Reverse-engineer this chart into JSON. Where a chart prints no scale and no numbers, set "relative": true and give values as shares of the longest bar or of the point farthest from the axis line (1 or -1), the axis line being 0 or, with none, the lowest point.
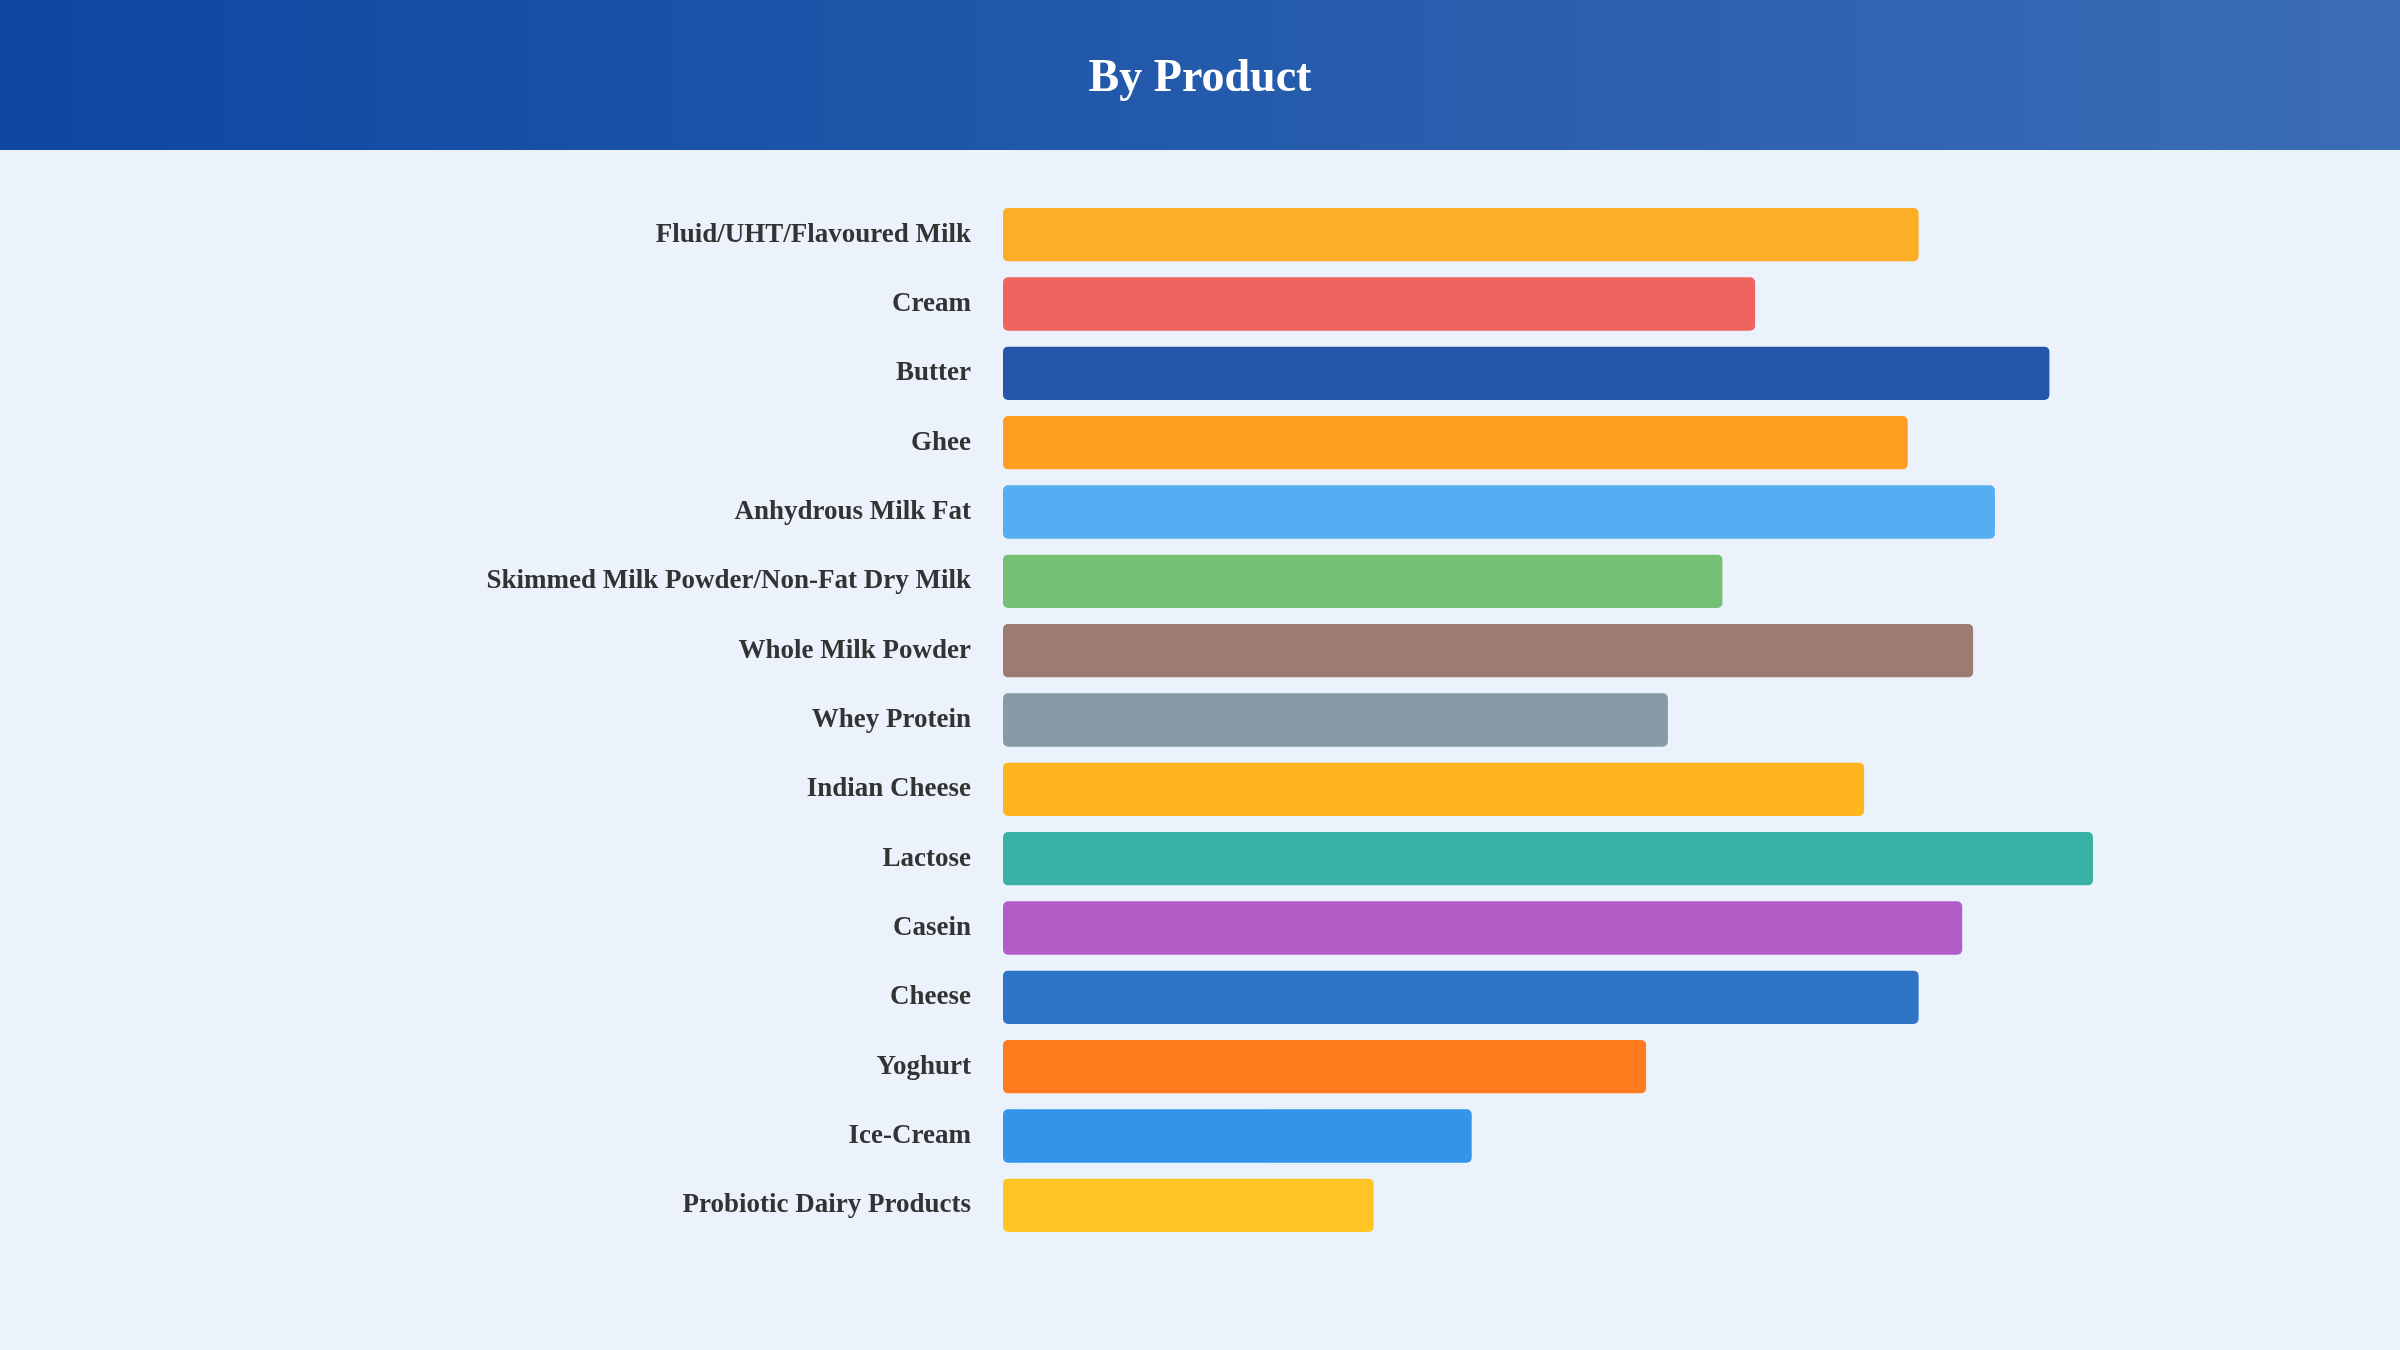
{
  "chart_data": {
    "type": "bar",
    "orientation": "horizontal",
    "relative": true,
    "title": "By Product",
    "categories": [
      "Fluid/UHT/Flavoured Milk",
      "Cream",
      "Butter",
      "Ghee",
      "Anhydrous Milk Fat",
      "Skimmed Milk Powder/Non-Fat Dry Milk",
      "Whole Milk Powder",
      "Whey Protein",
      "Indian Cheese",
      "Lactose",
      "Casein",
      "Cheese",
      "Yoghurt",
      "Ice-Cream",
      "Probiotic Dairy Products"
    ],
    "values": [
      0.84,
      0.69,
      0.96,
      0.83,
      0.91,
      0.66,
      0.89,
      0.61,
      0.79,
      1,
      0.88,
      0.84,
      0.59,
      0.43,
      0.34
    ],
    "colors": [
      "#fdad26",
      "#ef6461",
      "#2356ab",
      "#fe9f22",
      "#55adf2",
      "#74c074",
      "#9c7b72",
      "#869ba6",
      "#ffb61e",
      "#3ab1a5",
      "#b15dc5",
      "#2e75c8",
      "#fd7b1c",
      "#3593e8",
      "#fec524"
    ],
    "legend": false
  }
}
